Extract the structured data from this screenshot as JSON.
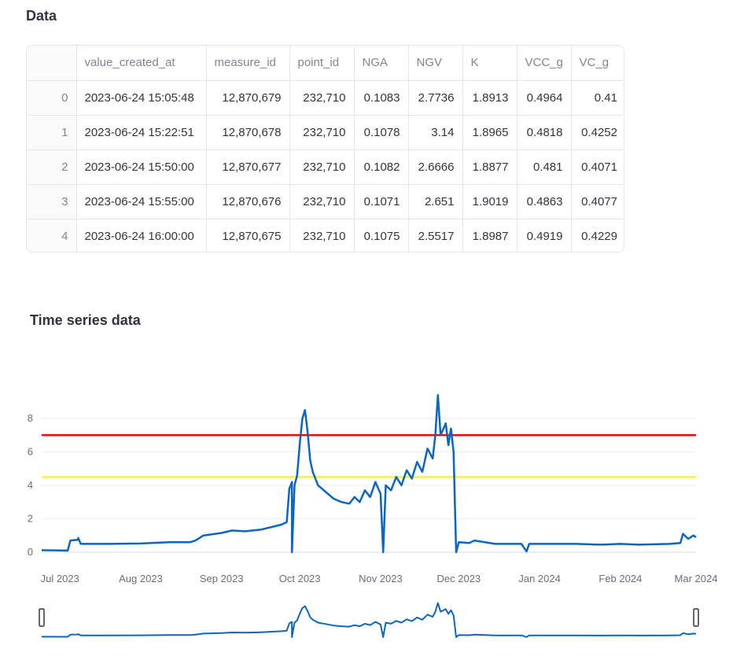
{
  "data_section": {
    "title": "Data",
    "columns": [
      "",
      "value_created_at",
      "measure_id",
      "point_id",
      "NGA",
      "NGV",
      "K",
      "VCC_g",
      "VC_g"
    ],
    "rows": [
      [
        "0",
        "2023-06-24 15:05:48",
        "12,870,679",
        "232,710",
        "0.1083",
        "2.7736",
        "1.8913",
        "0.4964",
        "0.41"
      ],
      [
        "1",
        "2023-06-24 15:22:51",
        "12,870,678",
        "232,710",
        "0.1078",
        "3.14",
        "1.8965",
        "0.4818",
        "0.4252"
      ],
      [
        "2",
        "2023-06-24 15:50:00",
        "12,870,677",
        "232,710",
        "0.1082",
        "2.6666",
        "1.8877",
        "0.481",
        "0.4071"
      ],
      [
        "3",
        "2023-06-24 15:55:00",
        "12,870,676",
        "232,710",
        "0.1071",
        "2.651",
        "1.9019",
        "0.4863",
        "0.4077"
      ],
      [
        "4",
        "2023-06-24 16:00:00",
        "12,870,675",
        "232,710",
        "0.1075",
        "2.5517",
        "1.8987",
        "0.4919",
        "0.4229"
      ]
    ]
  },
  "timeseries_section": {
    "title": "Time series data"
  },
  "chart_data": {
    "type": "line",
    "title": "",
    "xlabel": "",
    "ylabel": "",
    "ylim": [
      0,
      9.5
    ],
    "yticks": [
      0,
      2,
      4,
      6,
      8
    ],
    "xlim": [
      "2023-06-24",
      "2024-03-01"
    ],
    "xticks": [
      {
        "date": "2023-07-01",
        "label": "Jul 2023"
      },
      {
        "date": "2023-08-01",
        "label": "Aug 2023"
      },
      {
        "date": "2023-09-01",
        "label": "Sep 2023"
      },
      {
        "date": "2023-10-01",
        "label": "Oct 2023"
      },
      {
        "date": "2023-11-01",
        "label": "Nov 2023"
      },
      {
        "date": "2023-12-01",
        "label": "Dec 2023"
      },
      {
        "date": "2024-01-01",
        "label": "Jan 2024"
      },
      {
        "date": "2024-02-01",
        "label": "Feb 2024"
      },
      {
        "date": "2024-03-01",
        "label": "Mar 2024"
      }
    ],
    "thresholds": [
      {
        "value": 7.0,
        "color": "#ff0000"
      },
      {
        "value": 4.5,
        "color": "#ffff00"
      }
    ],
    "grid": true,
    "range_slider": true,
    "series": [
      {
        "color": "#0b66c3",
        "points": [
          [
            "2023-06-24",
            0.12
          ],
          [
            "2023-07-04",
            0.1
          ],
          [
            "2023-07-05",
            0.7
          ],
          [
            "2023-07-08",
            0.75
          ],
          [
            "2023-07-08",
            0.85
          ],
          [
            "2023-07-09",
            0.5
          ],
          [
            "2023-07-20",
            0.5
          ],
          [
            "2023-08-01",
            0.52
          ],
          [
            "2023-08-12",
            0.6
          ],
          [
            "2023-08-20",
            0.6
          ],
          [
            "2023-08-22",
            0.7
          ],
          [
            "2023-08-25",
            1.0
          ],
          [
            "2023-09-01",
            1.15
          ],
          [
            "2023-09-05",
            1.3
          ],
          [
            "2023-09-10",
            1.25
          ],
          [
            "2023-09-16",
            1.35
          ],
          [
            "2023-09-20",
            1.5
          ],
          [
            "2023-09-24",
            1.65
          ],
          [
            "2023-09-26",
            1.8
          ],
          [
            "2023-09-27",
            3.8
          ],
          [
            "2023-09-28",
            4.2
          ],
          [
            "2023-09-28",
            0.0
          ],
          [
            "2023-09-29",
            4.0
          ],
          [
            "2023-09-30",
            4.6
          ],
          [
            "2023-10-01",
            6.5
          ],
          [
            "2023-10-02",
            8.0
          ],
          [
            "2023-10-03",
            8.5
          ],
          [
            "2023-10-04",
            7.2
          ],
          [
            "2023-10-05",
            5.5
          ],
          [
            "2023-10-06",
            4.8
          ],
          [
            "2023-10-08",
            4.0
          ],
          [
            "2023-10-11",
            3.6
          ],
          [
            "2023-10-14",
            3.2
          ],
          [
            "2023-10-17",
            3.0
          ],
          [
            "2023-10-20",
            2.9
          ],
          [
            "2023-10-22",
            3.3
          ],
          [
            "2023-10-24",
            3.0
          ],
          [
            "2023-10-26",
            3.7
          ],
          [
            "2023-10-28",
            3.3
          ],
          [
            "2023-10-30",
            4.2
          ],
          [
            "2023-11-01",
            3.5
          ],
          [
            "2023-11-02",
            0.0
          ],
          [
            "2023-11-03",
            4.0
          ],
          [
            "2023-11-05",
            3.7
          ],
          [
            "2023-11-07",
            4.5
          ],
          [
            "2023-11-09",
            4.0
          ],
          [
            "2023-11-11",
            4.9
          ],
          [
            "2023-11-13",
            4.4
          ],
          [
            "2023-11-15",
            5.4
          ],
          [
            "2023-11-17",
            4.8
          ],
          [
            "2023-11-19",
            6.2
          ],
          [
            "2023-11-21",
            5.6
          ],
          [
            "2023-11-22",
            7.0
          ],
          [
            "2023-11-23",
            9.4
          ],
          [
            "2023-11-24",
            7.0
          ],
          [
            "2023-11-26",
            7.7
          ],
          [
            "2023-11-27",
            6.4
          ],
          [
            "2023-11-28",
            7.4
          ],
          [
            "2023-11-29",
            6.0
          ],
          [
            "2023-11-30",
            0.0
          ],
          [
            "2023-12-01",
            0.6
          ],
          [
            "2023-12-05",
            0.55
          ],
          [
            "2023-12-07",
            0.7
          ],
          [
            "2023-12-15",
            0.5
          ],
          [
            "2023-12-25",
            0.5
          ],
          [
            "2023-12-27",
            0.05
          ],
          [
            "2023-12-28",
            0.5
          ],
          [
            "2024-01-05",
            0.5
          ],
          [
            "2024-01-15",
            0.5
          ],
          [
            "2024-01-25",
            0.45
          ],
          [
            "2024-02-01",
            0.5
          ],
          [
            "2024-02-08",
            0.45
          ],
          [
            "2024-02-20",
            0.5
          ],
          [
            "2024-02-24",
            0.55
          ],
          [
            "2024-02-25",
            1.1
          ],
          [
            "2024-02-27",
            0.8
          ],
          [
            "2024-02-29",
            1.0
          ],
          [
            "2024-03-01",
            0.9
          ]
        ]
      }
    ]
  }
}
